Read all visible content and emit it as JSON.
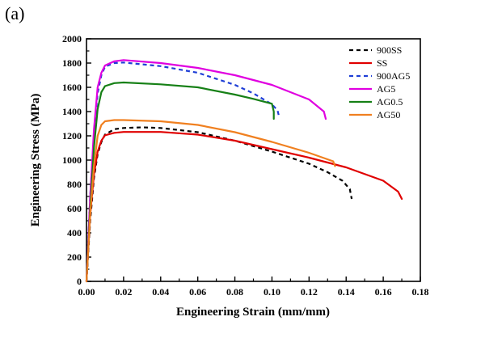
{
  "panel_label": "(a)",
  "chart_data": {
    "type": "line",
    "title": "",
    "xlabel": "Engineering Strain (mm/mm)",
    "ylabel": "Engineering Stress (MPa)",
    "xlim": [
      0,
      0.18
    ],
    "ylim": [
      0,
      2000
    ],
    "xticks": [
      0,
      0.02,
      0.04,
      0.06,
      0.08,
      0.1,
      0.12,
      0.14,
      0.16,
      0.18
    ],
    "xtick_labels": [
      "0.00",
      "0.02",
      "0.04",
      "0.06",
      "0.08",
      "0.10",
      "0.12",
      "0.14",
      "0.16",
      "0.18"
    ],
    "yticks": [
      0,
      200,
      400,
      600,
      800,
      1000,
      1200,
      1400,
      1600,
      1800,
      2000
    ],
    "ytick_labels": [
      "0",
      "200",
      "400",
      "600",
      "800",
      "1000",
      "1200",
      "1400",
      "1600",
      "1800",
      "2000"
    ],
    "grid": false,
    "legend_position": "top-right",
    "series": [
      {
        "name": "900SS",
        "color": "#000000",
        "dash": "dashed",
        "points": [
          [
            0,
            0
          ],
          [
            0.002,
            500
          ],
          [
            0.004,
            850
          ],
          [
            0.006,
            1050
          ],
          [
            0.008,
            1150
          ],
          [
            0.01,
            1210
          ],
          [
            0.015,
            1255
          ],
          [
            0.02,
            1265
          ],
          [
            0.03,
            1270
          ],
          [
            0.04,
            1265
          ],
          [
            0.06,
            1230
          ],
          [
            0.08,
            1160
          ],
          [
            0.1,
            1070
          ],
          [
            0.12,
            970
          ],
          [
            0.13,
            900
          ],
          [
            0.138,
            830
          ],
          [
            0.142,
            760
          ],
          [
            0.143,
            680
          ]
        ]
      },
      {
        "name": "SS",
        "color": "#e00000",
        "dash": "solid",
        "points": [
          [
            0,
            0
          ],
          [
            0.002,
            550
          ],
          [
            0.004,
            880
          ],
          [
            0.006,
            1070
          ],
          [
            0.008,
            1160
          ],
          [
            0.01,
            1205
          ],
          [
            0.015,
            1225
          ],
          [
            0.02,
            1232
          ],
          [
            0.04,
            1232
          ],
          [
            0.06,
            1210
          ],
          [
            0.08,
            1160
          ],
          [
            0.1,
            1090
          ],
          [
            0.12,
            1020
          ],
          [
            0.14,
            940
          ],
          [
            0.16,
            830
          ],
          [
            0.168,
            740
          ],
          [
            0.17,
            680
          ]
        ]
      },
      {
        "name": "900AG5",
        "color": "#1f3fd6",
        "dash": "dashed",
        "points": [
          [
            0,
            0
          ],
          [
            0.002,
            700
          ],
          [
            0.004,
            1200
          ],
          [
            0.006,
            1550
          ],
          [
            0.008,
            1700
          ],
          [
            0.01,
            1770
          ],
          [
            0.015,
            1800
          ],
          [
            0.02,
            1805
          ],
          [
            0.04,
            1775
          ],
          [
            0.06,
            1720
          ],
          [
            0.08,
            1620
          ],
          [
            0.09,
            1550
          ],
          [
            0.1,
            1460
          ],
          [
            0.103,
            1410
          ],
          [
            0.104,
            1350
          ]
        ]
      },
      {
        "name": "AG5",
        "color": "#e000e0",
        "dash": "solid",
        "points": [
          [
            0,
            0
          ],
          [
            0.002,
            700
          ],
          [
            0.004,
            1250
          ],
          [
            0.006,
            1600
          ],
          [
            0.008,
            1720
          ],
          [
            0.01,
            1780
          ],
          [
            0.015,
            1815
          ],
          [
            0.02,
            1825
          ],
          [
            0.04,
            1800
          ],
          [
            0.06,
            1760
          ],
          [
            0.08,
            1700
          ],
          [
            0.1,
            1620
          ],
          [
            0.12,
            1500
          ],
          [
            0.128,
            1400
          ],
          [
            0.129,
            1340
          ]
        ]
      },
      {
        "name": "AG0.5",
        "color": "#168016",
        "dash": "solid",
        "points": [
          [
            0,
            0
          ],
          [
            0.002,
            600
          ],
          [
            0.004,
            1100
          ],
          [
            0.006,
            1420
          ],
          [
            0.008,
            1560
          ],
          [
            0.01,
            1610
          ],
          [
            0.015,
            1635
          ],
          [
            0.02,
            1640
          ],
          [
            0.04,
            1625
          ],
          [
            0.06,
            1600
          ],
          [
            0.08,
            1540
          ],
          [
            0.09,
            1505
          ],
          [
            0.1,
            1465
          ],
          [
            0.101,
            1400
          ],
          [
            0.101,
            1340
          ]
        ]
      },
      {
        "name": "AG50",
        "color": "#f08020",
        "dash": "solid",
        "points": [
          [
            0,
            0
          ],
          [
            0.002,
            550
          ],
          [
            0.004,
            950
          ],
          [
            0.006,
            1200
          ],
          [
            0.008,
            1290
          ],
          [
            0.01,
            1320
          ],
          [
            0.015,
            1330
          ],
          [
            0.02,
            1330
          ],
          [
            0.04,
            1320
          ],
          [
            0.06,
            1290
          ],
          [
            0.08,
            1230
          ],
          [
            0.1,
            1150
          ],
          [
            0.12,
            1060
          ],
          [
            0.133,
            990
          ],
          [
            0.134,
            950
          ]
        ]
      }
    ]
  }
}
